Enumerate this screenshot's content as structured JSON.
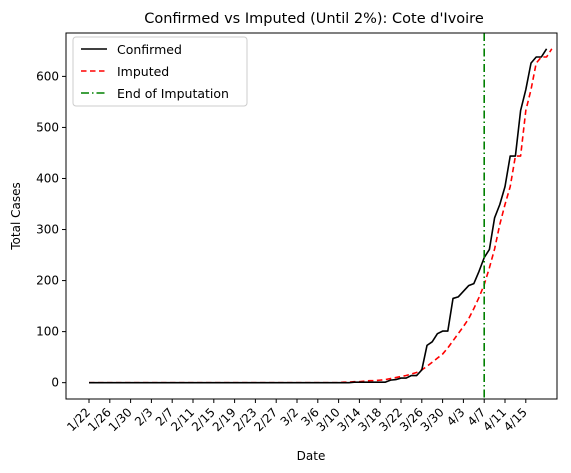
{
  "chart_data": {
    "type": "line",
    "title": "Confirmed vs Imputed (Until 2%): Cote d'Ivoire",
    "xlabel": "Date",
    "ylabel": "Total Cases",
    "x_tick_labels": [
      "1/22",
      "1/26",
      "1/30",
      "2/3",
      "2/7",
      "2/11",
      "2/15",
      "2/19",
      "2/23",
      "2/27",
      "3/2",
      "3/6",
      "3/10",
      "3/14",
      "3/18",
      "3/22",
      "3/26",
      "3/30",
      "4/3",
      "4/7",
      "4/11",
      "4/15"
    ],
    "y_ticks": [
      0,
      100,
      200,
      300,
      400,
      500,
      600
    ],
    "ylim": [
      -32,
      685
    ],
    "grid": false,
    "legend_position": "top-left",
    "x_start_date": "1/22",
    "series": [
      {
        "name": "Confirmed",
        "color": "#000000",
        "style": "solid",
        "values": [
          0,
          0,
          0,
          0,
          0,
          0,
          0,
          0,
          0,
          0,
          0,
          0,
          0,
          0,
          0,
          0,
          0,
          0,
          0,
          0,
          0,
          0,
          0,
          0,
          0,
          0,
          0,
          0,
          0,
          0,
          0,
          0,
          0,
          0,
          0,
          0,
          0,
          0,
          0,
          0,
          0,
          0,
          0,
          0,
          0,
          0,
          0,
          0,
          0,
          0,
          0,
          1,
          1,
          1,
          1,
          1,
          1,
          1,
          5,
          6,
          9,
          9,
          14,
          14,
          25,
          73,
          80,
          96,
          101,
          101,
          165,
          168,
          179,
          190,
          194,
          218,
          245,
          261,
          323,
          349,
          384,
          444,
          444,
          533,
          574,
          626,
          638,
          638,
          654
        ]
      },
      {
        "name": "Imputed",
        "color": "#ff0000",
        "style": "dashed",
        "values": [
          0,
          0,
          0,
          0,
          0,
          0,
          0,
          0,
          0,
          0,
          0,
          0,
          0,
          0,
          0,
          0,
          0,
          0,
          0,
          0,
          0,
          0,
          0,
          0,
          0,
          0,
          0,
          0,
          0,
          0,
          0,
          0,
          0,
          0,
          0,
          0,
          0,
          0,
          0,
          0,
          0,
          0,
          0,
          0,
          0,
          0,
          0,
          0,
          0,
          1,
          1,
          2,
          2,
          3,
          4,
          4,
          5,
          6,
          8,
          10,
          12,
          14,
          17,
          20,
          25,
          32,
          40,
          48,
          56,
          68,
          82,
          96,
          110,
          125,
          145,
          167,
          192,
          225,
          262,
          310,
          349,
          384,
          444,
          444,
          533,
          574,
          626,
          638,
          638,
          654
        ]
      }
    ],
    "vertical_line": {
      "name": "End of Imputation",
      "x": "4/7",
      "color": "#008000",
      "style": "dashdot"
    }
  }
}
